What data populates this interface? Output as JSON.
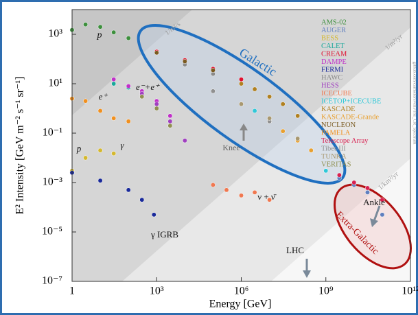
{
  "chart_data": {
    "type": "scatter",
    "x_label": "Energy [GeV]",
    "y_label": "E² Intensity [GeV m⁻² s⁻¹ sr⁻¹]",
    "xscale": "log",
    "yscale": "log",
    "xlim": [
      1,
      1000000000000.0
    ],
    "ylim": [
      1e-07,
      10000.0
    ],
    "xticks": [
      1,
      {
        "value": 1000,
        "label": "10³"
      },
      {
        "value": 1000000,
        "label": "10⁶"
      },
      {
        "value": 1000000000,
        "label": "10⁹"
      },
      {
        "value": 1000000000000,
        "label": "10¹²"
      }
    ],
    "yticks": [
      {
        "value": 1e-07,
        "label": "10⁻⁷"
      },
      {
        "value": 1e-05,
        "label": "10⁻⁵"
      },
      {
        "value": 0.001,
        "label": "10⁻³"
      },
      {
        "value": 0.1,
        "label": "10⁻¹"
      },
      {
        "value": 10,
        "label": "10¹"
      },
      {
        "value": 1000,
        "label": "10³"
      }
    ],
    "series": [
      {
        "name": "AMS-02",
        "color": "#3d8f3d",
        "x": [
          1,
          3,
          10,
          30,
          100,
          1000
        ],
        "values": [
          1500,
          2500,
          2000,
          1200,
          700,
          200
        ]
      },
      {
        "name": "AUGER",
        "color": "#5f7fbf",
        "x": [
          3000000000,
          10000000000,
          30000000000,
          100000000000
        ],
        "values": [
          0.0015,
          0.0008,
          0.0004,
          5e-05
        ]
      },
      {
        "name": "BESS",
        "color": "#d4b830",
        "x": [
          1,
          3,
          10,
          30
        ],
        "values": [
          0.003,
          0.01,
          0.02,
          0.015
        ]
      },
      {
        "name": "CALET",
        "color": "#1aa89a",
        "x": [
          30,
          100,
          1000
        ],
        "values": [
          10,
          7,
          2
        ]
      },
      {
        "name": "CREAM",
        "color": "#e0102f",
        "x": [
          1000,
          10000,
          100000,
          1000000
        ],
        "values": [
          200,
          90,
          40,
          15
        ]
      },
      {
        "name": "DAMPE",
        "color": "#c030c8",
        "x": [
          30,
          100,
          300,
          1000,
          3000
        ],
        "values": [
          15,
          8,
          5,
          2,
          0.5
        ]
      },
      {
        "name": "FERMI",
        "color": "#1a2a9a",
        "x": [
          1,
          10,
          100,
          300,
          800
        ],
        "values": [
          0.0025,
          0.0012,
          0.0005,
          0.0002,
          5e-05
        ]
      },
      {
        "name": "HAWC",
        "color": "#8a8a8a",
        "x": [
          10000,
          100000
        ],
        "values": [
          60,
          25
        ]
      },
      {
        "name": "HESS",
        "color": "#a040c0",
        "x": [
          300,
          1000,
          3000,
          10000
        ],
        "values": [
          4,
          1.5,
          0.3,
          0.05
        ]
      },
      {
        "name": "ICECUBE",
        "color": "#f07850",
        "x": [
          100000,
          300000,
          1000000,
          3000000,
          10000000
        ],
        "values": [
          0.0008,
          0.0005,
          0.0003,
          0.0004,
          0.0002
        ]
      },
      {
        "name": "ICETOP+ICECUBE",
        "color": "#30c8d8",
        "x": [
          3000000,
          10000000,
          100000000,
          300000000,
          1000000000
        ],
        "values": [
          0.8,
          0.3,
          0.05,
          0.02,
          0.003
        ]
      },
      {
        "name": "KASCADE",
        "color": "#b08020",
        "x": [
          1000000,
          3000000,
          10000000,
          30000000,
          100000000
        ],
        "values": [
          10,
          6,
          3,
          1.5,
          0.5
        ]
      },
      {
        "name": "KASCADE-Grande",
        "color": "#e8a030",
        "x": [
          10000000,
          30000000,
          100000000,
          300000000
        ],
        "values": [
          0.3,
          0.12,
          0.05,
          0.02
        ]
      },
      {
        "name": "NUCLEON",
        "color": "#7a5a20",
        "x": [
          1000,
          10000,
          100000
        ],
        "values": [
          180,
          80,
          35
        ]
      },
      {
        "name": "PAMELA",
        "color": "#f09020",
        "x": [
          1,
          3,
          10,
          30,
          100
        ],
        "values": [
          2.5,
          2,
          0.8,
          0.4,
          0.3
        ]
      },
      {
        "name": "Telescope Array",
        "color": "#d82050",
        "x": [
          3000000000,
          10000000000,
          30000000000,
          100000000000
        ],
        "values": [
          0.002,
          0.001,
          0.0006,
          0.0002
        ]
      },
      {
        "name": "Tibet-III",
        "color": "#909090",
        "x": [
          100000,
          1000000,
          10000000
        ],
        "values": [
          5,
          1.5,
          0.3
        ]
      },
      {
        "name": "TUNKA",
        "color": "#a89870",
        "x": [
          1000000,
          10000000,
          100000000
        ],
        "values": [
          1.5,
          0.4,
          0.06
        ]
      },
      {
        "name": "VERITAS",
        "color": "#909050",
        "x": [
          300,
          1000,
          3000
        ],
        "values": [
          3,
          1,
          0.2
        ]
      }
    ],
    "annotations": [
      "p",
      "e⁻+e⁺",
      "e⁺",
      "p̄",
      "γ",
      "γ IGRB",
      "ν + ν̄",
      "Knee",
      "Ankle",
      "LHC",
      "Galactic",
      "Extra-Galactic",
      "1/m²/s",
      "1/m²/yr",
      "1/km²/yr",
      "github.com/carmelorevelli/The_CR_Spectrum"
    ]
  }
}
